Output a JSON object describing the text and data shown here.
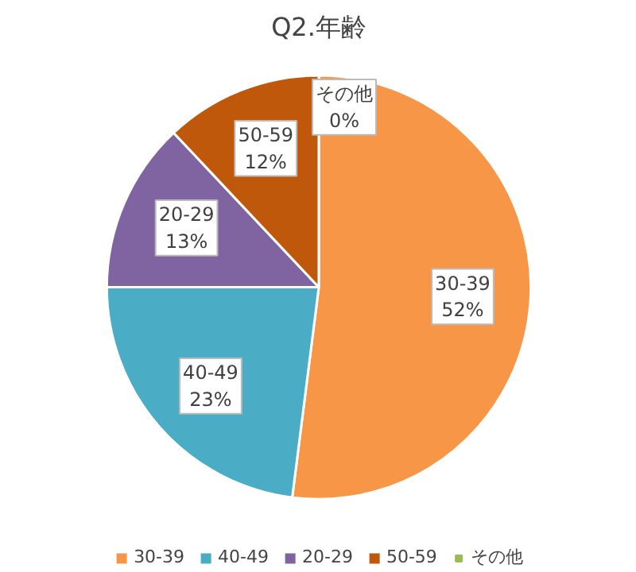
{
  "chart_data": {
    "type": "pie",
    "title": "Q2.年齢",
    "categories": [
      "30-39",
      "40-49",
      "20-29",
      "50-59",
      "その他"
    ],
    "values": [
      52,
      23,
      13,
      12,
      0
    ],
    "colors": [
      "#f79646",
      "#4bacc6",
      "#8064a2",
      "#c0580c",
      "#9bbb59"
    ],
    "value_labels": [
      "52%",
      "23%",
      "13%",
      "12%",
      "0%"
    ],
    "legend": "bottom"
  }
}
